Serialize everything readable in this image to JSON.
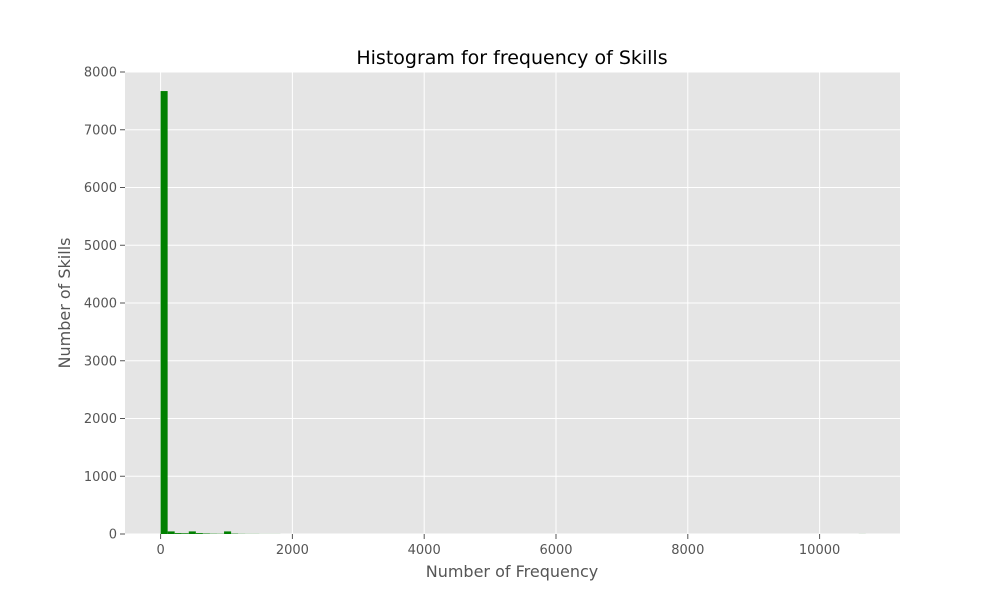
{
  "chart_data": {
    "type": "bar",
    "title": "Histogram for frequency of Skills",
    "xlabel": "Number of Frequency",
    "ylabel": "Number of Skills",
    "xlim": [
      -540,
      11220
    ],
    "ylim": [
      0,
      8000
    ],
    "xticks": [
      0,
      2000,
      4000,
      6000,
      8000,
      10000
    ],
    "yticks": [
      0,
      1000,
      2000,
      3000,
      4000,
      5000,
      6000,
      7000,
      8000
    ],
    "grid": true,
    "bin_width": 107,
    "bins": [
      {
        "x_start": 0,
        "value": 7670
      },
      {
        "x_start": 107,
        "value": 45
      },
      {
        "x_start": 214,
        "value": 15
      },
      {
        "x_start": 321,
        "value": 12
      },
      {
        "x_start": 428,
        "value": 45
      },
      {
        "x_start": 535,
        "value": 15
      },
      {
        "x_start": 642,
        "value": 8
      },
      {
        "x_start": 749,
        "value": 5
      },
      {
        "x_start": 856,
        "value": 4
      },
      {
        "x_start": 963,
        "value": 45
      },
      {
        "x_start": 1070,
        "value": 6
      },
      {
        "x_start": 1177,
        "value": 3
      },
      {
        "x_start": 1284,
        "value": 2
      },
      {
        "x_start": 1391,
        "value": 2
      },
      {
        "x_start": 1498,
        "value": 1
      },
      {
        "x_start": 1605,
        "value": 1
      },
      {
        "x_start": 1712,
        "value": 1
      },
      {
        "x_start": 10593,
        "value": 1
      }
    ],
    "colors": {
      "bar": "#008000",
      "plot_background": "#e5e5e5",
      "grid": "#ffffff",
      "tick": "#555555"
    }
  }
}
